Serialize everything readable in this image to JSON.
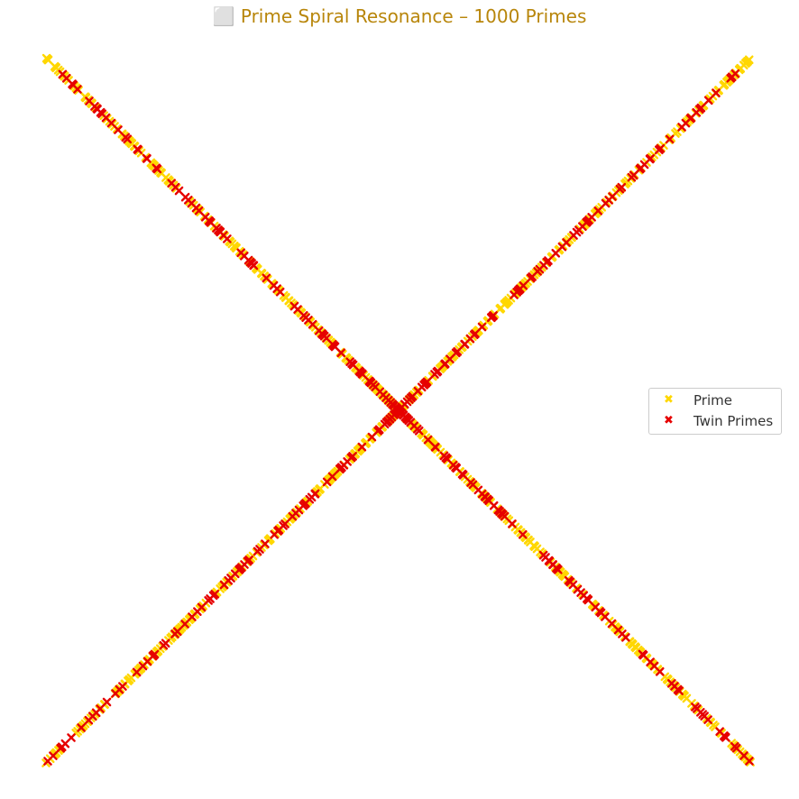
{
  "title": "⬜ Prime Spiral Resonance – 1000 Primes",
  "legend": {
    "prime_label": "Prime",
    "twin_label": "Twin Primes",
    "marker_glyph": "✖"
  },
  "colors": {
    "title": "#b8860b",
    "prime": "#ffd700",
    "twin": "#e60000"
  },
  "chart_data": {
    "type": "scatter",
    "title": "⬜ Prime Spiral Resonance – 1000 Primes",
    "description_of_geometry": "",
    "num_primes": 1000,
    "mapping": "primes plotted at polar angle (p mod 4) * 90deg + 45deg with radius proportional to p",
    "series": [
      {
        "name": "Prime",
        "marker": "x",
        "color": "#ffd700"
      },
      {
        "name": "Twin Primes",
        "marker": "x",
        "color": "#e60000"
      }
    ],
    "axes_visible": false,
    "grid": false,
    "legend_position": "center-right"
  }
}
